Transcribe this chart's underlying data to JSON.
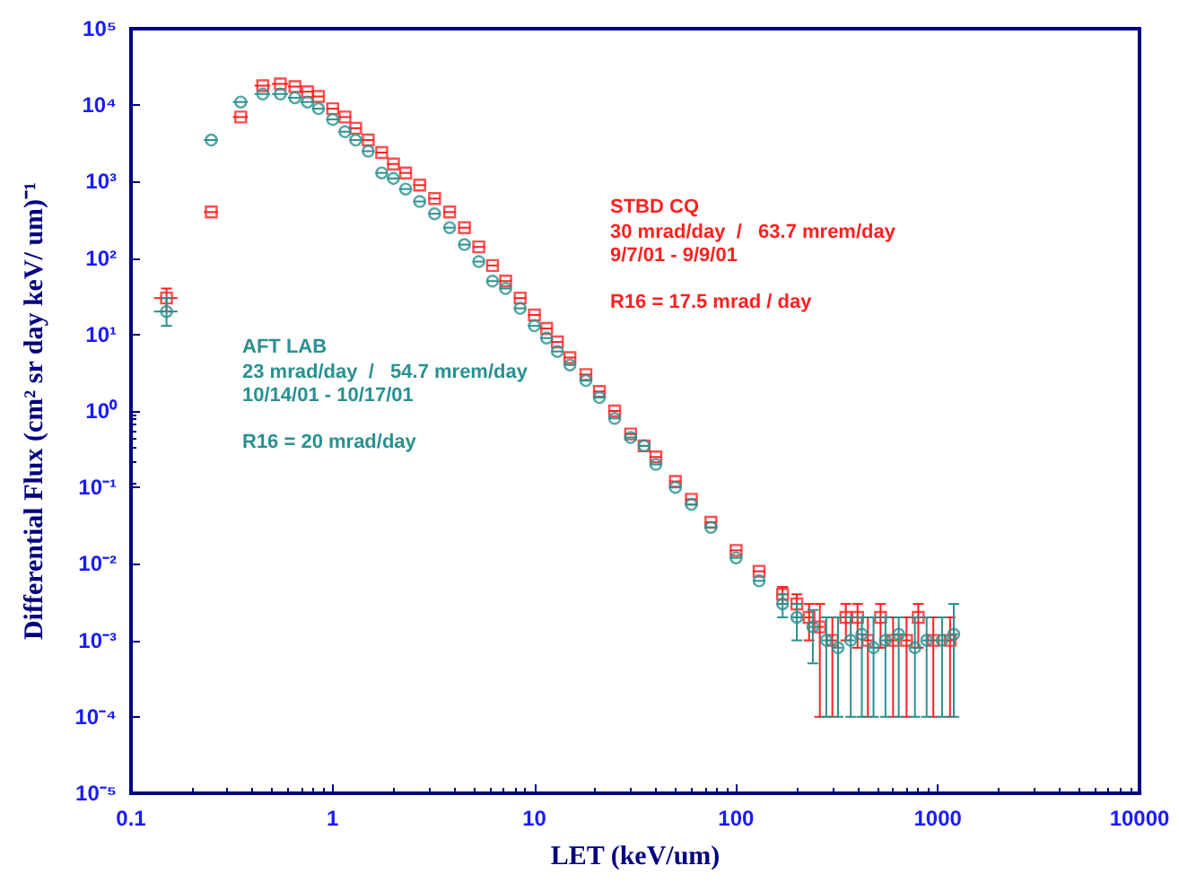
{
  "chart_data": {
    "type": "scatter",
    "xlabel": "LET (keV/um)",
    "ylabel": "Differential Flux (cm² sr day keV/ um)⁻¹",
    "log": "xy",
    "grid": false,
    "legend": false,
    "xlim": [
      0.1,
      10000
    ],
    "xticks": [
      0.1,
      1,
      10,
      100,
      1000,
      10000
    ],
    "ylim": [
      1e-05,
      100000
    ],
    "yticks": [
      {
        "value": 1e-05,
        "label": "10⁻⁵"
      },
      {
        "value": 0.0001,
        "label": "10⁻⁴"
      },
      {
        "value": 0.001,
        "label": "10⁻³"
      },
      {
        "value": 0.01,
        "label": "10⁻²"
      },
      {
        "value": 0.1,
        "label": "10⁻¹"
      },
      {
        "value": 1,
        "label": "10⁰"
      },
      {
        "value": 10,
        "label": "10¹"
      },
      {
        "value": 100,
        "label": "10²"
      },
      {
        "value": 1000,
        "label": "10³"
      },
      {
        "value": 10000,
        "label": "10⁴"
      },
      {
        "value": 100000,
        "label": "10⁵"
      }
    ],
    "annotations": [
      "30 mrad/day  /   63.7 mrem/day\n9/7/01 - 9/9/01\n\nR16 = 17.5 mrad / day",
      "23 mrad/day  /   54.7 mrem/day\n10/14/01 - 10/17/01\n\nR16 = 20 mrad/day"
    ],
    "series": [
      {
        "name": "STBD CQ",
        "color": "#ff2020",
        "marker": "square",
        "x": [
          0.15,
          0.25,
          0.35,
          0.45,
          0.55,
          0.65,
          0.75,
          0.85,
          1.0,
          1.15,
          1.3,
          1.5,
          1.75,
          2.0,
          2.3,
          2.7,
          3.2,
          3.8,
          4.5,
          5.3,
          6.2,
          7.2,
          8.5,
          10,
          11.5,
          13,
          15,
          18,
          21,
          25,
          30,
          35,
          40,
          50,
          60,
          75,
          100,
          130,
          170,
          200,
          230,
          260,
          300,
          350,
          400,
          450,
          520,
          600,
          700,
          800,
          950,
          1150
        ],
        "values": [
          30,
          400,
          7000,
          18000,
          19000,
          17500,
          15000,
          13000,
          9000,
          7000,
          5000,
          3500,
          2400,
          1700,
          1300,
          900,
          600,
          400,
          250,
          140,
          80,
          50,
          30,
          18,
          12,
          8,
          5,
          3,
          1.8,
          1.0,
          0.5,
          0.35,
          0.25,
          0.12,
          0.07,
          0.035,
          0.015,
          0.008,
          0.004,
          0.003,
          0.002,
          0.0015,
          0.001,
          0.002,
          0.002,
          0.001,
          0.002,
          0.001,
          0.001,
          0.002,
          0.001,
          0.001
        ],
        "errors": [
          [
            20,
            40
          ],
          null,
          null,
          null,
          null,
          null,
          null,
          null,
          null,
          null,
          null,
          null,
          null,
          null,
          null,
          null,
          null,
          null,
          null,
          null,
          null,
          null,
          null,
          null,
          null,
          null,
          null,
          null,
          null,
          null,
          null,
          null,
          null,
          null,
          null,
          null,
          null,
          null,
          [
            0.003,
            0.005
          ],
          [
            0.002,
            0.004
          ],
          [
            0.001,
            0.003
          ],
          [
            0.0001,
            0.003
          ],
          [
            0.0001,
            0.002
          ],
          [
            0.001,
            0.003
          ],
          [
            0.0008,
            0.003
          ],
          [
            0.0001,
            0.002
          ],
          [
            0.0008,
            0.003
          ],
          [
            0.0001,
            0.002
          ],
          [
            0.0001,
            0.002
          ],
          [
            0.0008,
            0.003
          ],
          [
            0.0001,
            0.002
          ],
          [
            0.0001,
            0.002
          ]
        ],
        "xerrors": [
          0.02,
          0.02,
          0.03,
          0.04,
          0.05,
          0.05,
          0.06,
          0.06,
          0.07,
          0.08,
          0.09,
          0.1,
          0.12,
          0.14,
          0.16,
          0.19,
          0.22,
          0.26,
          0.3,
          0.35,
          0.4,
          0.5,
          0.6,
          0.7,
          0.8,
          0.9,
          1,
          1.2,
          1.4,
          1.7,
          2,
          2.3,
          2.7,
          3.3,
          4,
          5,
          7,
          9,
          11,
          13,
          12,
          13,
          15,
          17,
          20,
          22,
          25,
          30,
          35,
          40,
          45,
          55
        ]
      },
      {
        "name": "AFT LAB",
        "color": "#2a9090",
        "marker": "circle",
        "x": [
          0.15,
          0.25,
          0.35,
          0.45,
          0.55,
          0.65,
          0.75,
          0.85,
          1.0,
          1.15,
          1.3,
          1.5,
          1.75,
          2.0,
          2.3,
          2.7,
          3.2,
          3.8,
          4.5,
          5.3,
          6.2,
          7.2,
          8.5,
          10,
          11.5,
          13,
          15,
          18,
          21,
          25,
          30,
          35,
          40,
          50,
          60,
          75,
          100,
          130,
          170,
          200,
          240,
          280,
          320,
          370,
          420,
          480,
          550,
          640,
          770,
          880,
          1050,
          1200
        ],
        "values": [
          20,
          3500,
          11000,
          14000,
          14000,
          12500,
          11000,
          9000,
          6500,
          4500,
          3500,
          2500,
          1300,
          1100,
          800,
          550,
          380,
          250,
          150,
          90,
          50,
          40,
          22,
          13,
          9,
          6,
          4,
          2.5,
          1.5,
          0.8,
          0.45,
          0.35,
          0.2,
          0.1,
          0.06,
          0.03,
          0.012,
          0.006,
          0.003,
          0.002,
          0.0015,
          0.001,
          0.0008,
          0.001,
          0.0012,
          0.0008,
          0.001,
          0.0012,
          0.0008,
          0.001,
          0.001,
          0.0012
        ],
        "errors": [
          [
            13,
            30
          ],
          null,
          null,
          null,
          null,
          null,
          null,
          null,
          null,
          null,
          null,
          null,
          null,
          null,
          null,
          null,
          null,
          null,
          null,
          null,
          null,
          null,
          null,
          null,
          null,
          null,
          null,
          null,
          null,
          null,
          null,
          null,
          null,
          null,
          null,
          null,
          null,
          null,
          [
            0.002,
            0.004
          ],
          [
            0.001,
            0.003
          ],
          [
            0.0005,
            0.0025
          ],
          [
            0.0001,
            0.002
          ],
          [
            0.0001,
            0.002
          ],
          [
            0.0001,
            0.002
          ],
          [
            0.0001,
            0.002
          ],
          [
            0.0001,
            0.002
          ],
          [
            0.0001,
            0.002
          ],
          [
            0.0001,
            0.002
          ],
          [
            0.0001,
            0.002
          ],
          [
            0.0001,
            0.002
          ],
          [
            0.0001,
            0.002
          ],
          [
            0.0001,
            0.003
          ]
        ],
        "xerrors": [
          0.02,
          0.02,
          0.03,
          0.04,
          0.05,
          0.05,
          0.06,
          0.06,
          0.07,
          0.08,
          0.09,
          0.1,
          0.12,
          0.14,
          0.16,
          0.19,
          0.22,
          0.26,
          0.3,
          0.35,
          0.4,
          0.5,
          0.6,
          0.7,
          0.8,
          0.9,
          1,
          1.2,
          1.4,
          1.7,
          2,
          2.3,
          2.7,
          3.3,
          4,
          5,
          7,
          9,
          11,
          13,
          12,
          14,
          16,
          18,
          21,
          24,
          27,
          32,
          37,
          43,
          50,
          60
        ]
      }
    ]
  }
}
